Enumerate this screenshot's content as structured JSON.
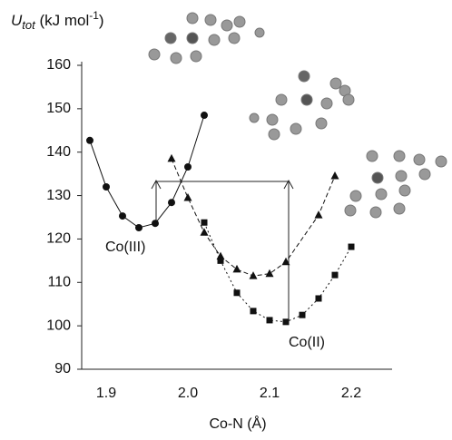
{
  "chart_data": {
    "type": "line",
    "y_label": [
      "U",
      "tot",
      " (kJ mol",
      "-1",
      ")"
    ],
    "x_label": "Co-N (Å)",
    "xlim": [
      1.87,
      2.25
    ],
    "xticks": [
      {
        "value": 1.9,
        "label": "1.9"
      },
      {
        "value": 2.0,
        "label": "2.0"
      },
      {
        "value": 2.1,
        "label": "2.1"
      },
      {
        "value": 2.2,
        "label": "2.2"
      }
    ],
    "ylim": [
      90,
      160
    ],
    "yticks": [
      90,
      100,
      110,
      120,
      130,
      140,
      150,
      160
    ],
    "series": [
      {
        "marker": "circle",
        "dash": "solid",
        "color": "#111",
        "x": [
          1.88,
          1.9,
          1.92,
          1.94,
          1.96,
          1.98,
          2.0,
          2.02
        ],
        "values": [
          142.7,
          132,
          125.3,
          122.6,
          123.6,
          128.4,
          136.6,
          148.5
        ]
      },
      {
        "marker": "triangle",
        "dash": "dashed",
        "color": "#111",
        "x": [
          1.98,
          2.0,
          2.02,
          2.04,
          2.06,
          2.08,
          2.1,
          2.12,
          2.16,
          2.18
        ],
        "values": [
          138.5,
          129.5,
          121.5,
          116,
          113,
          111.5,
          112,
          114.7,
          125.5,
          134.5
        ]
      },
      {
        "marker": "square",
        "dash": "dotted",
        "color": "#111",
        "x": [
          2.02,
          2.04,
          2.06,
          2.08,
          2.1,
          2.12,
          2.14,
          2.16,
          2.18,
          2.2
        ],
        "values": [
          123.8,
          115,
          107.6,
          103.4,
          101.3,
          100.9,
          102.5,
          106.3,
          111.7,
          118.2
        ]
      }
    ],
    "annotations": [
      "Co(III)",
      "Co(II)"
    ]
  }
}
